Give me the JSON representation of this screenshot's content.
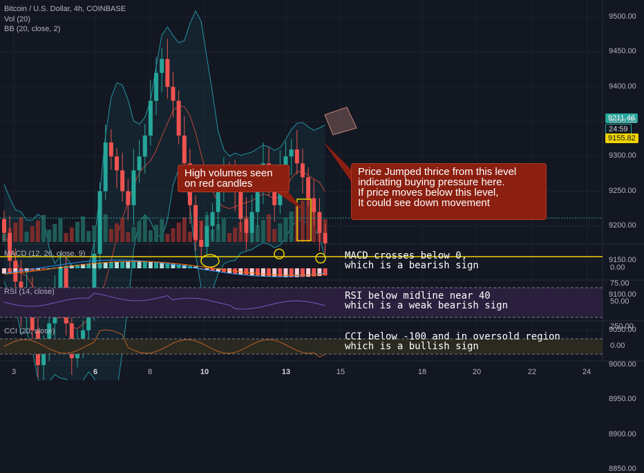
{
  "header": {
    "symbol": "Bitcoin / U.S. Dollar, 4h, COINBASE",
    "vol_label": "Vol (20)",
    "bb_label": "BB (20, close, 2)"
  },
  "panels": {
    "macd_title": "MACD (12, 26, close, 9)",
    "rsi_title": "RSI (14, close)",
    "cci_title": "CCI (20, close)"
  },
  "callouts": {
    "volume": "High volumes seen\non red candles",
    "support": "Price Jumped thrice from this level\nindicating buying pressure here.\nIf price moves below this level,\nIt could see down movement"
  },
  "notes": {
    "macd": "MACD crosses below 0,\nwhich is a bearish sign",
    "rsi": "RSI below midline near 40\nwhich is a weak bearish sign",
    "cci": "CCI below -100 and in oversold region\nwhich is a bullish sign"
  },
  "price_tags": {
    "current": "9211.46",
    "countdown": "24:59",
    "support": "9155.82"
  },
  "colors": {
    "bg": "#131722",
    "up": "#26a69a",
    "down": "#ef5350",
    "bb_band": "#2196a3",
    "bb_basis": "#c0453a",
    "support_line": "#f0d400",
    "rsi_fill": "#2a1f3d",
    "cci_fill": "#2a2a20"
  },
  "chart_data": [
    {
      "type": "candlestick",
      "title": "Bitcoin / U.S. Dollar, 4h, COINBASE",
      "ylim": [
        8850,
        9500
      ],
      "yticks": [
        "9500.00",
        "9450.00",
        "9400.00",
        "9350.00",
        "9300.00",
        "9250.00",
        "9200.00",
        "9150.00",
        "9100.00",
        "9050.00",
        "9000.00",
        "8950.00",
        "8900.00",
        "8850.00"
      ],
      "xticks": [
        "3",
        "6",
        "8",
        "10",
        "13",
        "15",
        "18",
        "20",
        "22",
        "24"
      ],
      "support_level": 9155.82,
      "last_price": 9211.46,
      "close_path": [
        9190,
        9150,
        9120,
        9070,
        9110,
        9050,
        9000,
        9020,
        9060,
        9100,
        9140,
        9060,
        9010,
        9030,
        9050,
        9080,
        9160,
        9250,
        9320,
        9300,
        9280,
        9250,
        9230,
        9280,
        9300,
        9330,
        9380,
        9420,
        9440,
        9400,
        9380,
        9330,
        9290,
        9230,
        9180,
        9170,
        9200,
        9220,
        9250,
        9280,
        9270,
        9250,
        9210,
        9190,
        9220,
        9260,
        9290,
        9260,
        9230,
        9280,
        9300,
        9310,
        9290,
        9270,
        9240,
        9220,
        9190,
        9175
      ],
      "volume_ylim": [
        0,
        1
      ]
    },
    {
      "type": "bar",
      "title": "MACD (12, 26, close, 9)",
      "yticks": [
        "0.00"
      ]
    },
    {
      "type": "line",
      "title": "RSI (14, close)",
      "ylim": [
        25,
        75
      ],
      "yticks": [
        "75.00",
        "50.00"
      ],
      "bands": [
        30,
        70
      ],
      "last_value": 40
    },
    {
      "type": "line",
      "title": "CCI (20, close)",
      "ylim": [
        -200,
        250
      ],
      "yticks": [
        "250.00",
        "0.00"
      ],
      "bands": [
        -100,
        100
      ]
    }
  ]
}
